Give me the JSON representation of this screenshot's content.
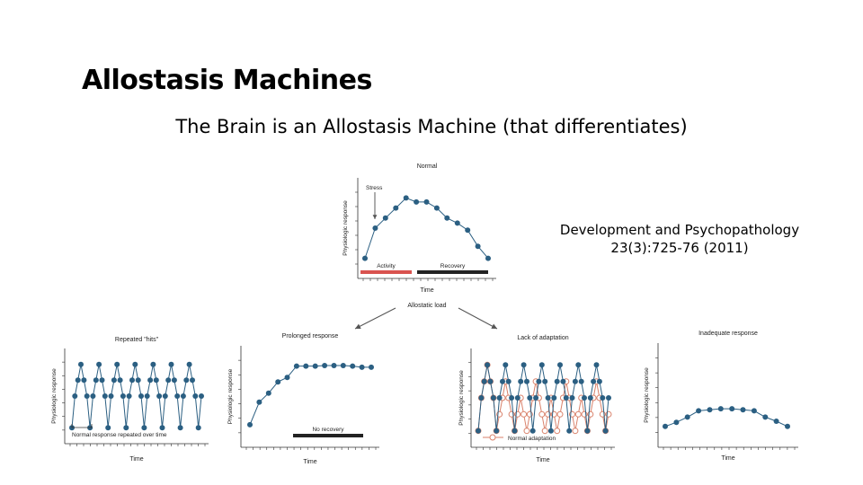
{
  "slide": {
    "title": "Allostasis Machines",
    "subtitle": "The Brain is an Allostasis Machine (that differentiates)",
    "citation_line1": "Development and Psychopathology",
    "citation_line2": "23(3):725-76 (2011)"
  },
  "colors": {
    "series_blue": "#2b5f82",
    "open_circle_red": "#d9826b",
    "activity_bar": "#d9534f",
    "dark_bar": "#222222"
  },
  "figure": {
    "center_label": "Allostatic load"
  },
  "chart_data": [
    {
      "type": "line",
      "title": "Normal",
      "xlabel": "Time",
      "ylabel": "Physiologic response",
      "series": [
        {
          "values": [
            2,
            5,
            6,
            7,
            8,
            7.6,
            7.6,
            7,
            6,
            5.5,
            4.8,
            3.2,
            2
          ]
        }
      ],
      "ylim": [
        0,
        10
      ],
      "annotations": [
        "Stress"
      ],
      "phase_bars": [
        {
          "label": "Activity",
          "from": 0,
          "to": 5,
          "color": "#d9534f"
        },
        {
          "label": "Recovery",
          "from": 5.5,
          "to": 13,
          "color": "#222222"
        }
      ]
    },
    {
      "type": "line",
      "title": "Repeated \"hits\"",
      "xlabel": "Time",
      "ylabel": "Physiologic response",
      "series": [
        {
          "values": [
            1,
            3,
            4,
            5,
            4,
            3,
            1,
            3,
            4,
            5,
            4,
            3,
            1,
            3,
            4,
            5,
            4,
            3,
            1,
            3,
            4,
            5,
            4,
            3,
            1,
            3,
            4,
            5,
            4,
            3,
            1,
            3,
            4,
            5,
            4,
            3,
            1,
            3,
            4,
            5,
            4,
            3,
            1,
            3
          ]
        }
      ],
      "ylim": [
        0,
        6
      ],
      "annotations": [
        "Normal response repeated over time"
      ]
    },
    {
      "type": "line",
      "title": "Prolonged response",
      "xlabel": "Time",
      "ylabel": "Physiologic response",
      "series": [
        {
          "values": [
            2,
            4,
            4.8,
            5.8,
            6.2,
            7.2,
            7.2,
            7.2,
            7.25,
            7.25,
            7.25,
            7.2,
            7.1,
            7.1
          ]
        }
      ],
      "ylim": [
        0,
        9
      ],
      "phase_bars": [
        {
          "label": "No recovery",
          "from": 5,
          "to": 13,
          "color": "#222222"
        }
      ]
    },
    {
      "type": "line",
      "title": "Lack of adaptation",
      "xlabel": "Time",
      "ylabel": "Physiologic response",
      "series": [
        {
          "name": "Normal adaptation",
          "style": "open",
          "values": [
            1,
            3,
            4,
            5,
            4,
            3,
            1,
            2,
            3,
            4,
            3,
            2,
            1,
            2,
            3,
            2,
            1,
            2,
            3,
            4,
            3,
            2,
            1,
            2,
            3,
            2,
            1,
            2,
            3,
            4,
            3,
            2,
            1,
            2,
            3,
            2,
            1,
            2,
            3,
            4,
            3,
            2,
            1,
            2
          ]
        },
        {
          "style": "filled",
          "values": [
            1,
            3,
            4,
            5,
            4,
            3,
            1,
            3,
            4,
            5,
            4,
            3,
            1,
            3,
            4,
            5,
            4,
            3,
            1,
            3,
            4,
            5,
            4,
            3,
            1,
            3,
            4,
            5,
            4,
            3,
            1,
            3,
            4,
            5,
            4,
            3,
            1,
            3,
            4,
            5,
            4,
            3,
            1,
            3
          ]
        }
      ],
      "ylim": [
        0,
        6
      ]
    },
    {
      "type": "line",
      "title": "Inadequate response",
      "xlabel": "Time",
      "ylabel": "Physiologic response",
      "series": [
        {
          "values": [
            2,
            2.4,
            2.9,
            3.5,
            3.6,
            3.7,
            3.7,
            3.6,
            3.5,
            2.9,
            2.5,
            2
          ]
        }
      ],
      "ylim": [
        0,
        10
      ]
    }
  ]
}
